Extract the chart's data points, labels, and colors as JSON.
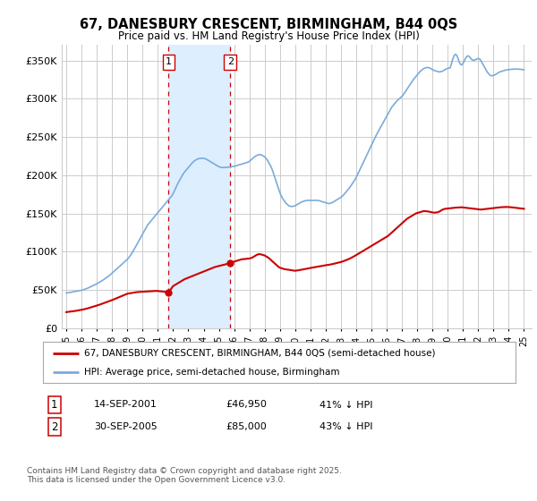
{
  "title1": "67, DANESBURY CRESCENT, BIRMINGHAM, B44 0QS",
  "title2": "Price paid vs. HM Land Registry's House Price Index (HPI)",
  "bg_color": "#ffffff",
  "plot_bg_color": "#ffffff",
  "ylabel_ticks": [
    "£0",
    "£50K",
    "£100K",
    "£150K",
    "£200K",
    "£250K",
    "£300K",
    "£350K"
  ],
  "ytick_vals": [
    0,
    50000,
    100000,
    150000,
    200000,
    250000,
    300000,
    350000
  ],
  "ylim": [
    0,
    370000
  ],
  "xlim_start": 1994.7,
  "xlim_end": 2025.5,
  "xtick_years": [
    1995,
    1996,
    1997,
    1998,
    1999,
    2000,
    2001,
    2002,
    2003,
    2004,
    2005,
    2006,
    2007,
    2008,
    2009,
    2010,
    2011,
    2012,
    2013,
    2014,
    2015,
    2016,
    2017,
    2018,
    2019,
    2020,
    2021,
    2022,
    2023,
    2024,
    2025
  ],
  "purchase1_year": 2001.71,
  "purchase1_price": 46950,
  "purchase1_label": "1",
  "purchase2_year": 2005.75,
  "purchase2_price": 85000,
  "purchase2_label": "2",
  "shaded_region_color": "#ddeeff",
  "vline_color": "#cc0000",
  "hpi_line_color": "#7aabdb",
  "price_line_color": "#cc0000",
  "legend_label1": "67, DANESBURY CRESCENT, BIRMINGHAM, B44 0QS (semi-detached house)",
  "legend_label2": "HPI: Average price, semi-detached house, Birmingham",
  "footer_text": "Contains HM Land Registry data © Crown copyright and database right 2025.\nThis data is licensed under the Open Government Licence v3.0.",
  "table_row1": [
    "1",
    "14-SEP-2001",
    "£46,950",
    "41% ↓ HPI"
  ],
  "table_row2": [
    "2",
    "30-SEP-2005",
    "£85,000",
    "43% ↓ HPI"
  ],
  "hpi_data_x": [
    1995.0,
    1995.083,
    1995.167,
    1995.25,
    1995.333,
    1995.417,
    1995.5,
    1995.583,
    1995.667,
    1995.75,
    1995.833,
    1995.917,
    1996.0,
    1996.083,
    1996.167,
    1996.25,
    1996.333,
    1996.417,
    1996.5,
    1996.583,
    1996.667,
    1996.75,
    1996.833,
    1996.917,
    1997.0,
    1997.083,
    1997.167,
    1997.25,
    1997.333,
    1997.417,
    1997.5,
    1997.583,
    1997.667,
    1997.75,
    1997.833,
    1997.917,
    1998.0,
    1998.083,
    1998.167,
    1998.25,
    1998.333,
    1998.417,
    1998.5,
    1998.583,
    1998.667,
    1998.75,
    1998.833,
    1998.917,
    1999.0,
    1999.083,
    1999.167,
    1999.25,
    1999.333,
    1999.417,
    1999.5,
    1999.583,
    1999.667,
    1999.75,
    1999.833,
    1999.917,
    2000.0,
    2000.083,
    2000.167,
    2000.25,
    2000.333,
    2000.417,
    2000.5,
    2000.583,
    2000.667,
    2000.75,
    2000.833,
    2000.917,
    2001.0,
    2001.083,
    2001.167,
    2001.25,
    2001.333,
    2001.417,
    2001.5,
    2001.583,
    2001.667,
    2001.75,
    2001.833,
    2001.917,
    2002.0,
    2002.083,
    2002.167,
    2002.25,
    2002.333,
    2002.417,
    2002.5,
    2002.583,
    2002.667,
    2002.75,
    2002.833,
    2002.917,
    2003.0,
    2003.083,
    2003.167,
    2003.25,
    2003.333,
    2003.417,
    2003.5,
    2003.583,
    2003.667,
    2003.75,
    2003.833,
    2003.917,
    2004.0,
    2004.083,
    2004.167,
    2004.25,
    2004.333,
    2004.417,
    2004.5,
    2004.583,
    2004.667,
    2004.75,
    2004.833,
    2004.917,
    2005.0,
    2005.083,
    2005.167,
    2005.25,
    2005.333,
    2005.417,
    2005.5,
    2005.583,
    2005.667,
    2005.75,
    2005.833,
    2005.917,
    2006.0,
    2006.083,
    2006.167,
    2006.25,
    2006.333,
    2006.417,
    2006.5,
    2006.583,
    2006.667,
    2006.75,
    2006.833,
    2006.917,
    2007.0,
    2007.083,
    2007.167,
    2007.25,
    2007.333,
    2007.417,
    2007.5,
    2007.583,
    2007.667,
    2007.75,
    2007.833,
    2007.917,
    2008.0,
    2008.083,
    2008.167,
    2008.25,
    2008.333,
    2008.417,
    2008.5,
    2008.583,
    2008.667,
    2008.75,
    2008.833,
    2008.917,
    2009.0,
    2009.083,
    2009.167,
    2009.25,
    2009.333,
    2009.417,
    2009.5,
    2009.583,
    2009.667,
    2009.75,
    2009.833,
    2009.917,
    2010.0,
    2010.083,
    2010.167,
    2010.25,
    2010.333,
    2010.417,
    2010.5,
    2010.583,
    2010.667,
    2010.75,
    2010.833,
    2010.917,
    2011.0,
    2011.083,
    2011.167,
    2011.25,
    2011.333,
    2011.417,
    2011.5,
    2011.583,
    2011.667,
    2011.75,
    2011.833,
    2011.917,
    2012.0,
    2012.083,
    2012.167,
    2012.25,
    2012.333,
    2012.417,
    2012.5,
    2012.583,
    2012.667,
    2012.75,
    2012.833,
    2012.917,
    2013.0,
    2013.083,
    2013.167,
    2013.25,
    2013.333,
    2013.417,
    2013.5,
    2013.583,
    2013.667,
    2013.75,
    2013.833,
    2013.917,
    2014.0,
    2014.083,
    2014.167,
    2014.25,
    2014.333,
    2014.417,
    2014.5,
    2014.583,
    2014.667,
    2014.75,
    2014.833,
    2014.917,
    2015.0,
    2015.083,
    2015.167,
    2015.25,
    2015.333,
    2015.417,
    2015.5,
    2015.583,
    2015.667,
    2015.75,
    2015.833,
    2015.917,
    2016.0,
    2016.083,
    2016.167,
    2016.25,
    2016.333,
    2016.417,
    2016.5,
    2016.583,
    2016.667,
    2016.75,
    2016.833,
    2016.917,
    2017.0,
    2017.083,
    2017.167,
    2017.25,
    2017.333,
    2017.417,
    2017.5,
    2017.583,
    2017.667,
    2017.75,
    2017.833,
    2017.917,
    2018.0,
    2018.083,
    2018.167,
    2018.25,
    2018.333,
    2018.417,
    2018.5,
    2018.583,
    2018.667,
    2018.75,
    2018.833,
    2018.917,
    2019.0,
    2019.083,
    2019.167,
    2019.25,
    2019.333,
    2019.417,
    2019.5,
    2019.583,
    2019.667,
    2019.75,
    2019.833,
    2019.917,
    2020.0,
    2020.083,
    2020.167,
    2020.25,
    2020.333,
    2020.417,
    2020.5,
    2020.583,
    2020.667,
    2020.75,
    2020.833,
    2020.917,
    2021.0,
    2021.083,
    2021.167,
    2021.25,
    2021.333,
    2021.417,
    2021.5,
    2021.583,
    2021.667,
    2021.75,
    2021.833,
    2021.917,
    2022.0,
    2022.083,
    2022.167,
    2022.25,
    2022.333,
    2022.417,
    2022.5,
    2022.583,
    2022.667,
    2022.75,
    2022.833,
    2022.917,
    2023.0,
    2023.083,
    2023.167,
    2023.25,
    2023.333,
    2023.417,
    2023.5,
    2023.583,
    2023.667,
    2023.75,
    2023.833,
    2023.917,
    2024.0,
    2024.083,
    2024.167,
    2024.25,
    2024.333,
    2024.417,
    2024.5,
    2024.583,
    2024.667,
    2024.75,
    2024.833,
    2024.917,
    2025.0
  ],
  "hpi_data_y": [
    46000,
    46200,
    46400,
    46700,
    47000,
    47300,
    47600,
    47900,
    48200,
    48500,
    48800,
    49100,
    49500,
    50000,
    50600,
    51200,
    51800,
    52400,
    53200,
    54000,
    54800,
    55600,
    56400,
    57200,
    58000,
    59000,
    60000,
    61000,
    62000,
    63000,
    64200,
    65400,
    66600,
    67800,
    69000,
    70500,
    72000,
    73500,
    75000,
    76500,
    78000,
    79500,
    81000,
    82500,
    84000,
    85500,
    87000,
    88500,
    90000,
    92000,
    94000,
    96500,
    99000,
    102000,
    105000,
    108000,
    111000,
    114000,
    117000,
    120000,
    123000,
    126000,
    129000,
    132000,
    135000,
    137000,
    139000,
    141000,
    143000,
    145000,
    147000,
    149000,
    151000,
    153000,
    155000,
    157000,
    159000,
    161000,
    163000,
    165000,
    167000,
    169000,
    171000,
    173000,
    176000,
    179500,
    183000,
    186500,
    190000,
    193000,
    196000,
    199000,
    202000,
    204000,
    206000,
    208000,
    210000,
    212000,
    214000,
    216000,
    217500,
    219000,
    220000,
    221000,
    221500,
    222000,
    222000,
    222000,
    222000,
    221500,
    221000,
    220000,
    219000,
    218000,
    217000,
    216000,
    215000,
    214000,
    213000,
    212000,
    211000,
    210500,
    210000,
    210000,
    210000,
    210000,
    210200,
    210400,
    210600,
    210800,
    211000,
    211200,
    211500,
    212000,
    212500,
    213000,
    213500,
    214000,
    214500,
    215000,
    215500,
    216000,
    216500,
    217000,
    218000,
    219500,
    221000,
    222500,
    224000,
    225000,
    226000,
    226500,
    227000,
    226500,
    226000,
    225000,
    224000,
    222000,
    220000,
    217000,
    214000,
    211000,
    207000,
    202000,
    197000,
    192000,
    187000,
    182000,
    177000,
    173000,
    170000,
    167500,
    165000,
    163000,
    161500,
    160000,
    159500,
    159000,
    159200,
    159500,
    160000,
    161000,
    162000,
    163000,
    164000,
    165000,
    165500,
    166000,
    166500,
    167000,
    167000,
    167000,
    167000,
    167000,
    167000,
    167000,
    167000,
    167000,
    167000,
    166500,
    166000,
    165500,
    165000,
    164500,
    164000,
    163500,
    163000,
    163000,
    163500,
    164000,
    165000,
    166000,
    167000,
    168000,
    169000,
    170000,
    171000,
    172500,
    174000,
    176000,
    178000,
    180000,
    182000,
    184000,
    186500,
    189000,
    191500,
    194000,
    197000,
    200500,
    204000,
    207500,
    211000,
    214500,
    218000,
    221500,
    225000,
    228500,
    232000,
    235500,
    239000,
    242500,
    246000,
    249500,
    253000,
    256000,
    259000,
    262000,
    265000,
    268000,
    271000,
    274000,
    277000,
    280000,
    283000,
    286000,
    289000,
    291000,
    293000,
    295000,
    297000,
    298500,
    300000,
    301500,
    303000,
    305000,
    307500,
    310000,
    312500,
    315000,
    317500,
    320000,
    322500,
    325000,
    327000,
    329000,
    331000,
    333000,
    335000,
    336500,
    338000,
    339000,
    340000,
    340500,
    340800,
    340500,
    340000,
    339000,
    338000,
    337000,
    336500,
    336000,
    335500,
    335000,
    335000,
    335500,
    336000,
    337000,
    338000,
    339000,
    339500,
    340000,
    340500,
    346000,
    352000,
    356000,
    358000,
    357000,
    353000,
    348000,
    345000,
    344000,
    346000,
    349000,
    353000,
    355000,
    356000,
    355000,
    353000,
    351000,
    350000,
    350500,
    351000,
    352000,
    352500,
    352000,
    350000,
    347000,
    344000,
    341000,
    338000,
    335000,
    333000,
    331000,
    330000,
    330000,
    330500,
    331000,
    332000,
    333000,
    334000,
    335000,
    335500,
    336000,
    336500,
    337000,
    337500,
    337800,
    338000,
    338200,
    338400,
    338500,
    338600,
    338700,
    338700,
    338600,
    338500,
    338400,
    338200,
    338000,
    337800
  ],
  "price_data_x": [
    1995.0,
    1995.083,
    1995.167,
    1995.25,
    1995.333,
    1995.417,
    1995.5,
    1995.583,
    1995.667,
    1995.75,
    1995.833,
    1995.917,
    1996.0,
    1996.083,
    1996.167,
    1996.25,
    1996.333,
    1996.417,
    1996.5,
    1996.583,
    1996.667,
    1996.75,
    1996.833,
    1996.917,
    1997.0,
    1997.083,
    1997.167,
    1997.25,
    1997.333,
    1997.417,
    1997.5,
    1997.583,
    1997.667,
    1997.75,
    1997.833,
    1997.917,
    1998.0,
    1998.083,
    1998.167,
    1998.25,
    1998.333,
    1998.417,
    1998.5,
    1998.583,
    1998.667,
    1998.75,
    1998.833,
    1998.917,
    1999.0,
    1999.083,
    1999.167,
    1999.25,
    1999.333,
    1999.417,
    1999.5,
    1999.583,
    1999.667,
    1999.75,
    1999.833,
    1999.917,
    2000.0,
    2000.083,
    2000.167,
    2000.25,
    2000.333,
    2000.417,
    2000.5,
    2000.583,
    2000.667,
    2000.75,
    2000.833,
    2000.917,
    2001.71,
    2002.0,
    2002.25,
    2002.5,
    2002.75,
    2003.0,
    2003.25,
    2003.5,
    2003.75,
    2004.0,
    2004.25,
    2004.5,
    2004.75,
    2005.75,
    2006.0,
    2006.083,
    2006.167,
    2006.25,
    2006.333,
    2006.417,
    2006.5,
    2006.583,
    2006.667,
    2006.75,
    2006.833,
    2006.917,
    2007.0,
    2007.083,
    2007.167,
    2007.25,
    2007.333,
    2007.417,
    2007.5,
    2007.583,
    2007.667,
    2007.75,
    2007.833,
    2007.917,
    2008.0,
    2008.083,
    2008.167,
    2008.25,
    2008.333,
    2008.417,
    2008.5,
    2008.583,
    2008.667,
    2008.75,
    2008.833,
    2008.917,
    2009.0,
    2009.083,
    2009.167,
    2009.25,
    2009.333,
    2009.417,
    2009.5,
    2009.583,
    2009.667,
    2009.75,
    2009.833,
    2009.917,
    2010.0,
    2010.083,
    2010.167,
    2010.25,
    2010.333,
    2010.417,
    2010.5,
    2010.583,
    2010.667,
    2010.75,
    2010.833,
    2010.917,
    2011.0,
    2011.083,
    2011.167,
    2011.25,
    2011.333,
    2011.417,
    2011.5,
    2011.583,
    2011.667,
    2011.75,
    2011.833,
    2011.917,
    2012.0,
    2012.083,
    2012.167,
    2012.25,
    2012.333,
    2012.417,
    2012.5,
    2012.583,
    2012.667,
    2012.75,
    2012.833,
    2012.917,
    2013.0,
    2013.083,
    2013.167,
    2013.25,
    2013.333,
    2013.417,
    2013.5,
    2013.583,
    2013.667,
    2013.75,
    2013.833,
    2013.917,
    2014.0,
    2014.083,
    2014.167,
    2014.25,
    2014.333,
    2014.417,
    2014.5,
    2014.583,
    2014.667,
    2014.75,
    2014.833,
    2014.917,
    2015.0,
    2015.083,
    2015.167,
    2015.25,
    2015.333,
    2015.417,
    2015.5,
    2015.583,
    2015.667,
    2015.75,
    2015.833,
    2015.917,
    2016.0,
    2016.083,
    2016.167,
    2016.25,
    2016.333,
    2016.417,
    2016.5,
    2016.583,
    2016.667,
    2016.75,
    2016.833,
    2016.917,
    2017.0,
    2017.083,
    2017.167,
    2017.25,
    2017.333,
    2017.417,
    2017.5,
    2017.583,
    2017.667,
    2017.75,
    2017.833,
    2017.917,
    2018.0,
    2018.083,
    2018.167,
    2018.25,
    2018.333,
    2018.417,
    2018.5,
    2018.583,
    2018.667,
    2018.75,
    2018.833,
    2018.917,
    2019.0,
    2019.083,
    2019.167,
    2019.25,
    2019.333,
    2019.417,
    2019.5,
    2019.583,
    2019.667,
    2019.75,
    2019.833,
    2019.917,
    2020.0,
    2020.083,
    2020.167,
    2020.25,
    2020.333,
    2020.417,
    2020.5,
    2020.583,
    2020.667,
    2020.75,
    2020.833,
    2020.917,
    2021.0,
    2021.083,
    2021.167,
    2021.25,
    2021.333,
    2021.417,
    2021.5,
    2021.583,
    2021.667,
    2021.75,
    2021.833,
    2021.917,
    2022.0,
    2022.083,
    2022.167,
    2022.25,
    2022.333,
    2022.417,
    2022.5,
    2022.583,
    2022.667,
    2022.75,
    2022.833,
    2022.917,
    2023.0,
    2023.083,
    2023.167,
    2023.25,
    2023.333,
    2023.417,
    2023.5,
    2023.583,
    2023.667,
    2023.75,
    2023.833,
    2023.917,
    2024.0,
    2024.083,
    2024.167,
    2024.25,
    2024.333,
    2024.417,
    2024.5,
    2024.583,
    2024.667,
    2024.75,
    2024.833,
    2024.917,
    2025.0
  ],
  "price_data_y": [
    21000,
    21200,
    21400,
    21600,
    21800,
    22000,
    22200,
    22500,
    22800,
    23100,
    23400,
    23700,
    24000,
    24300,
    24700,
    25100,
    25500,
    26000,
    26500,
    27000,
    27500,
    28000,
    28500,
    29000,
    29500,
    30000,
    30600,
    31200,
    31800,
    32400,
    33000,
    33600,
    34200,
    34800,
    35400,
    36000,
    36700,
    37400,
    38100,
    38800,
    39500,
    40200,
    40900,
    41600,
    42300,
    43000,
    43700,
    44400,
    45000,
    45300,
    45600,
    45900,
    46200,
    46500,
    46800,
    47000,
    47200,
    47300,
    47400,
    47500,
    47600,
    47700,
    47800,
    47900,
    48000,
    48100,
    48200,
    48300,
    48400,
    48500,
    48600,
    48700,
    46950,
    55000,
    58000,
    61000,
    64000,
    66000,
    68000,
    70000,
    72000,
    74000,
    76000,
    78000,
    80000,
    85000,
    87000,
    87500,
    88000,
    88500,
    89000,
    89500,
    90000,
    90200,
    90400,
    90600,
    90700,
    90800,
    91000,
    91500,
    92000,
    93000,
    94000,
    95000,
    96000,
    96500,
    96800,
    96500,
    96000,
    95500,
    95000,
    94000,
    93000,
    92000,
    90500,
    89000,
    87500,
    86000,
    84500,
    83000,
    81500,
    80000,
    79000,
    78500,
    78000,
    77500,
    77000,
    76800,
    76500,
    76300,
    76000,
    75800,
    75500,
    75200,
    75000,
    75200,
    75500,
    75800,
    76000,
    76300,
    76700,
    77000,
    77300,
    77700,
    78000,
    78300,
    78700,
    79000,
    79300,
    79600,
    80000,
    80300,
    80600,
    80900,
    81200,
    81500,
    81700,
    82000,
    82200,
    82500,
    82700,
    83000,
    83300,
    83700,
    84000,
    84400,
    84800,
    85200,
    85600,
    86000,
    86500,
    87000,
    87600,
    88200,
    88800,
    89500,
    90200,
    91000,
    91800,
    92700,
    93600,
    94500,
    95500,
    96500,
    97500,
    98500,
    99500,
    100500,
    101500,
    102500,
    103500,
    104500,
    105500,
    106500,
    107500,
    108500,
    109500,
    110500,
    111500,
    112500,
    113500,
    114500,
    115500,
    116500,
    117500,
    118500,
    119500,
    120500,
    122000,
    123500,
    125000,
    126500,
    128000,
    129500,
    131000,
    132500,
    134000,
    135500,
    137000,
    138500,
    140000,
    141500,
    143000,
    144000,
    145000,
    146000,
    147000,
    148000,
    149000,
    150000,
    150500,
    151000,
    151500,
    152000,
    152500,
    153000,
    153000,
    152800,
    152600,
    152400,
    152000,
    151600,
    151200,
    151000,
    151000,
    151200,
    151500,
    152000,
    153000,
    154000,
    155000,
    155500,
    156000,
    156200,
    156400,
    156600,
    156800,
    157000,
    157200,
    157400,
    157500,
    157600,
    157700,
    157800,
    157900,
    158000,
    157800,
    157600,
    157400,
    157200,
    157000,
    156800,
    156600,
    156400,
    156200,
    156000,
    155800,
    155600,
    155400,
    155200,
    155000,
    155200,
    155400,
    155600,
    155800,
    156000,
    156200,
    156400,
    156600,
    156800,
    157000,
    157200,
    157400,
    157600,
    157800,
    158000,
    158100,
    158200,
    158300,
    158400,
    158400,
    158400,
    158300,
    158200,
    158000,
    157800,
    157600,
    157400,
    157200,
    157000,
    156800,
    156600,
    156400,
    156200,
    156000
  ]
}
